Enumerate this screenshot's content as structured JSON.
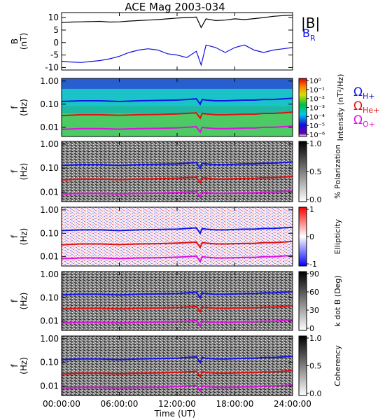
{
  "title": "ACE Mag 2003-034",
  "colors": {
    "B_total": "#000000",
    "B_R": "#1010e0",
    "H_plus": "#1414e6",
    "He_plus": "#e01010",
    "O_plus": "#e010e0"
  },
  "time_axis": {
    "label": "Time (UT)",
    "ticks": [
      "00:00:00",
      "06:00:00",
      "12:00:00",
      "18:00:00",
      "24:00:00"
    ],
    "range_hours": [
      0,
      24
    ]
  },
  "line_legend": {
    "B_total": "|B|",
    "B_R": "B",
    "B_R_sub": "R"
  },
  "ion_legend": {
    "sym": "Ω",
    "H": "H+",
    "He": "He+",
    "O": "O+"
  },
  "chart_data": [
    {
      "type": "line",
      "ylabel_top": "B",
      "ylabel_unit": "(nT)",
      "ylim": [
        -11,
        12
      ],
      "yticks": [
        "10",
        "5",
        "0",
        "-5",
        "-10"
      ],
      "ytick_values": [
        10,
        5,
        0,
        -5,
        -10
      ],
      "series": [
        {
          "name": "|B|",
          "x": [
            0,
            1,
            2,
            3,
            4,
            5,
            6,
            7,
            8,
            9,
            10,
            11,
            12,
            13,
            14,
            14.5,
            15,
            16,
            17,
            18,
            19,
            20,
            21,
            22,
            23,
            24
          ],
          "values": [
            8,
            8.2,
            8.3,
            8.4,
            8.5,
            8.2,
            8.3,
            8.6,
            8.8,
            9,
            9.2,
            9.5,
            9.8,
            10,
            10.2,
            6,
            9.5,
            8.8,
            9,
            9.5,
            9.2,
            9.6,
            10,
            10.5,
            10.8,
            11
          ]
        },
        {
          "name": "B_R",
          "x": [
            0,
            1,
            2,
            3,
            4,
            5,
            6,
            7,
            8,
            9,
            10,
            11,
            12,
            13,
            14,
            14.5,
            15,
            16,
            17,
            18,
            19,
            20,
            21,
            22,
            23,
            24
          ],
          "values": [
            -7.5,
            -7.8,
            -8,
            -7.6,
            -7.2,
            -6.5,
            -5.5,
            -4,
            -3,
            -2.5,
            -3,
            -4.5,
            -5,
            -6,
            -3.5,
            -9,
            -1,
            -2,
            -4,
            -2,
            -1,
            -3,
            -4,
            -3,
            -2.5,
            -2
          ]
        }
      ]
    },
    {
      "type": "heatmap",
      "ylabel_top": "f",
      "ylabel_unit": "(Hz)",
      "yticks": [
        "1.00",
        "0.10",
        "0.01"
      ],
      "ytick_values": [
        1.0,
        0.1,
        0.01
      ],
      "ylim": [
        0.004,
        1.3
      ],
      "colorbar_label": "Intensity (nT²/Hz)",
      "colorbar_ticks": [
        "10⁰",
        "10⁻¹",
        "10⁻²",
        "10⁻³",
        "10⁻⁴",
        "10⁻⁵",
        "10⁻⁶"
      ],
      "colormap": "rainbow"
    },
    {
      "type": "heatmap",
      "ylabel_top": "f",
      "ylabel_unit": "(Hz)",
      "yticks": [
        "1.00",
        "0.10",
        "0.01"
      ],
      "ytick_values": [
        1.0,
        0.1,
        0.01
      ],
      "ylim": [
        0.004,
        1.3
      ],
      "colorbar_label": "% Polarization",
      "colorbar_ticks": [
        "1.0",
        "0.5",
        "0.0"
      ],
      "colormap": "gray"
    },
    {
      "type": "heatmap",
      "ylabel_top": "f",
      "ylabel_unit": "(Hz)",
      "yticks": [
        "1.00",
        "0.10",
        "0.01"
      ],
      "ytick_values": [
        1.0,
        0.1,
        0.01
      ],
      "ylim": [
        0.004,
        1.3
      ],
      "colorbar_label": "Ellipticity",
      "colorbar_ticks": [
        "1",
        "0",
        "-1"
      ],
      "colormap": "bwr"
    },
    {
      "type": "heatmap",
      "ylabel_top": "f",
      "ylabel_unit": "(Hz)",
      "yticks": [
        "1.00",
        "0.10",
        "0.01"
      ],
      "ytick_values": [
        1.0,
        0.1,
        0.01
      ],
      "ylim": [
        0.004,
        1.3
      ],
      "colorbar_label": "k dot B (Deg)",
      "colorbar_ticks": [
        "90",
        "60",
        "30",
        "0"
      ],
      "colormap": "gray"
    },
    {
      "type": "heatmap",
      "ylabel_top": "f",
      "ylabel_unit": "(Hz)",
      "yticks": [
        "1.00",
        "0.10",
        "0.01"
      ],
      "ytick_values": [
        1.0,
        0.1,
        0.01
      ],
      "ylim": [
        0.004,
        1.3
      ],
      "colorbar_label": "Coherency",
      "colorbar_ticks": [
        "1.0",
        "0.5",
        "0.0"
      ],
      "colormap": "gray"
    }
  ],
  "gyro_lines": {
    "x": [
      0,
      2,
      4,
      6,
      8,
      10,
      12,
      13,
      14,
      14.4,
      14.6,
      15,
      16,
      17,
      18,
      19,
      20,
      21,
      22,
      23,
      24
    ],
    "H_plus": [
      0.13,
      0.14,
      0.14,
      0.13,
      0.14,
      0.145,
      0.15,
      0.16,
      0.17,
      0.1,
      0.16,
      0.15,
      0.14,
      0.14,
      0.145,
      0.15,
      0.15,
      0.16,
      0.16,
      0.17,
      0.18
    ],
    "He_plus": [
      0.032,
      0.035,
      0.035,
      0.033,
      0.035,
      0.036,
      0.038,
      0.04,
      0.042,
      0.025,
      0.04,
      0.038,
      0.035,
      0.035,
      0.036,
      0.037,
      0.037,
      0.04,
      0.04,
      0.042,
      0.045
    ],
    "O_plus": [
      0.0082,
      0.0088,
      0.0088,
      0.0083,
      0.0088,
      0.009,
      0.0095,
      0.01,
      0.0106,
      0.0062,
      0.01,
      0.0095,
      0.0088,
      0.0088,
      0.009,
      0.0093,
      0.0093,
      0.01,
      0.01,
      0.0106,
      0.0112
    ]
  }
}
